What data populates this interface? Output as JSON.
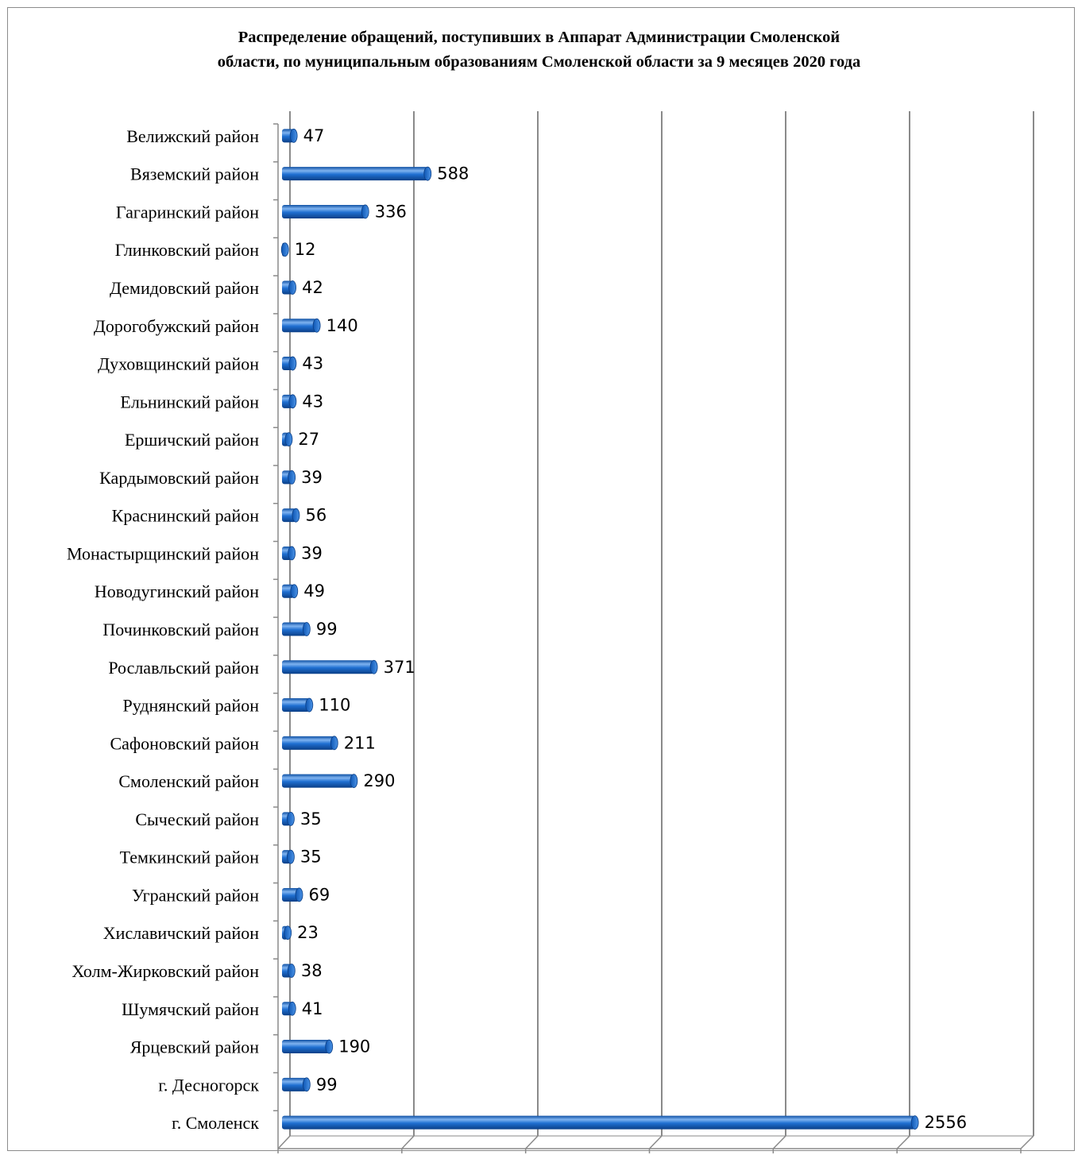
{
  "chart_data": {
    "type": "bar",
    "orientation": "horizontal",
    "title_lines": [
      "Распределение обращений, поступивших в Аппарат  Администрации Смоленской",
      "области, по муниципальным образованиям Смоленской области за 9 месяцев 2020 года"
    ],
    "categories": [
      "Велижский район",
      "Вяземский район",
      "Гагаринский район",
      "Глинковский район",
      "Демидовский  район",
      "Дорогобужский район",
      "Духовщинский район",
      "Ельнинский район ",
      "Ершичский район",
      "Кардымовский район",
      "Краснинский район",
      "Монастырщинский район",
      "Новодугинский район",
      "Починковский район",
      "Рославльский район",
      "Руднянский район",
      "Сафоновский район",
      "Смоленский район",
      "Сыческий район",
      "Темкинский район",
      "Угранский район",
      "Хиславичский район",
      "Холм-Жирковский район",
      "Шумячский район",
      "Ярцевский район",
      "г. Десногорск",
      "г. Смоленск"
    ],
    "values": [
      47,
      588,
      336,
      12,
      42,
      140,
      43,
      43,
      27,
      39,
      56,
      39,
      49,
      99,
      371,
      110,
      211,
      290,
      35,
      35,
      69,
      23,
      38,
      41,
      190,
      99,
      2556
    ],
    "value_labels": [
      "47",
      "588",
      "336",
      "12",
      "42",
      "140",
      "43",
      "43",
      "27",
      "39",
      "56",
      "39",
      "49",
      "99",
      "371",
      "110",
      "211",
      "290",
      "35",
      "35",
      "69",
      "23",
      "38",
      "41",
      "190",
      "99",
      "2556"
    ],
    "xlim": [
      0,
      3000
    ],
    "xticks": [
      "0",
      "500",
      "1000",
      "1500",
      "2000",
      "2500",
      "3000"
    ],
    "grid": "vertical",
    "legend": "none",
    "colors": {
      "bar": "#1f6fd1",
      "bar_dark": "#0b3f87",
      "bar_light": "#7fb3f0",
      "grid": "#8a8a8a"
    }
  }
}
